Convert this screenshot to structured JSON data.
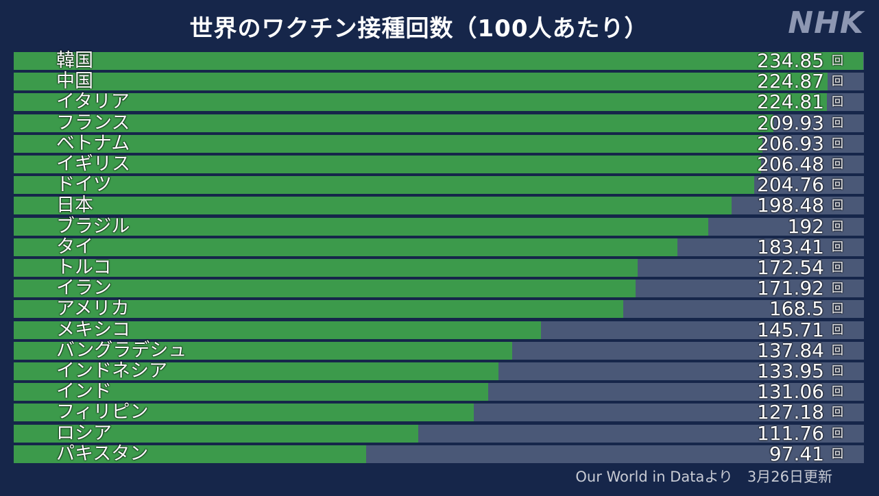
{
  "header": {
    "title": "世界のワクチン接種回数（100人あたり）",
    "logo": "NHK"
  },
  "footer": {
    "source": "Our World in Dataより　3月26日更新"
  },
  "colors": {
    "background": "#16264a",
    "bar": "#3c9a4b",
    "track": "#4a5877",
    "text": "#ffffff"
  },
  "chart_data": {
    "type": "bar",
    "orientation": "horizontal",
    "title": "世界のワクチン接種回数（100人あたり）",
    "unit": "回",
    "xlim": [
      0,
      235
    ],
    "categories": [
      "韓国",
      "中国",
      "イタリア",
      "フランス",
      "ベトナム",
      "イギリス",
      "ドイツ",
      "日本",
      "ブラジル",
      "タイ",
      "トルコ",
      "イラン",
      "アメリカ",
      "メキシコ",
      "バングラデシュ",
      "インドネシア",
      "インド",
      "フィリピン",
      "ロシア",
      "パキスタン"
    ],
    "values": [
      234.85,
      224.87,
      224.81,
      209.93,
      206.93,
      206.48,
      204.76,
      198.48,
      192,
      183.41,
      172.54,
      171.92,
      168.5,
      145.71,
      137.84,
      133.95,
      131.06,
      127.18,
      111.76,
      97.41
    ],
    "value_labels": [
      "234.85",
      "224.87",
      "224.81",
      "209.93",
      "206.93",
      "206.48",
      "204.76",
      "198.48",
      "192",
      "183.41",
      "172.54",
      "171.92",
      "168.5",
      "145.71",
      "137.84",
      "133.95",
      "131.06",
      "127.18",
      "111.76",
      "97.41"
    ]
  }
}
